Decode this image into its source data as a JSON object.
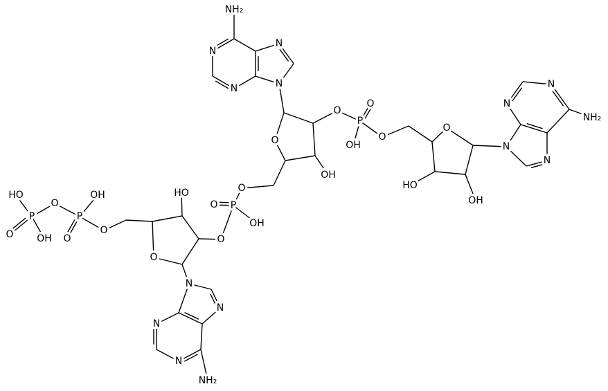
{
  "molecule": {
    "atom_labels": [
      "NH₂",
      "N",
      "N",
      "N",
      "N",
      "O",
      "OH",
      "O",
      "P",
      "O",
      "OH",
      "O",
      "O",
      "HO",
      "OH",
      "N",
      "N",
      "N",
      "N",
      "NH₂",
      "O",
      "P",
      "O",
      "OH",
      "O",
      "HO",
      "O",
      "O",
      "P",
      "OH",
      "O",
      "O",
      "P",
      "HO",
      "O",
      "OH",
      "N",
      "N",
      "N",
      "N",
      "NH₂"
    ]
  }
}
